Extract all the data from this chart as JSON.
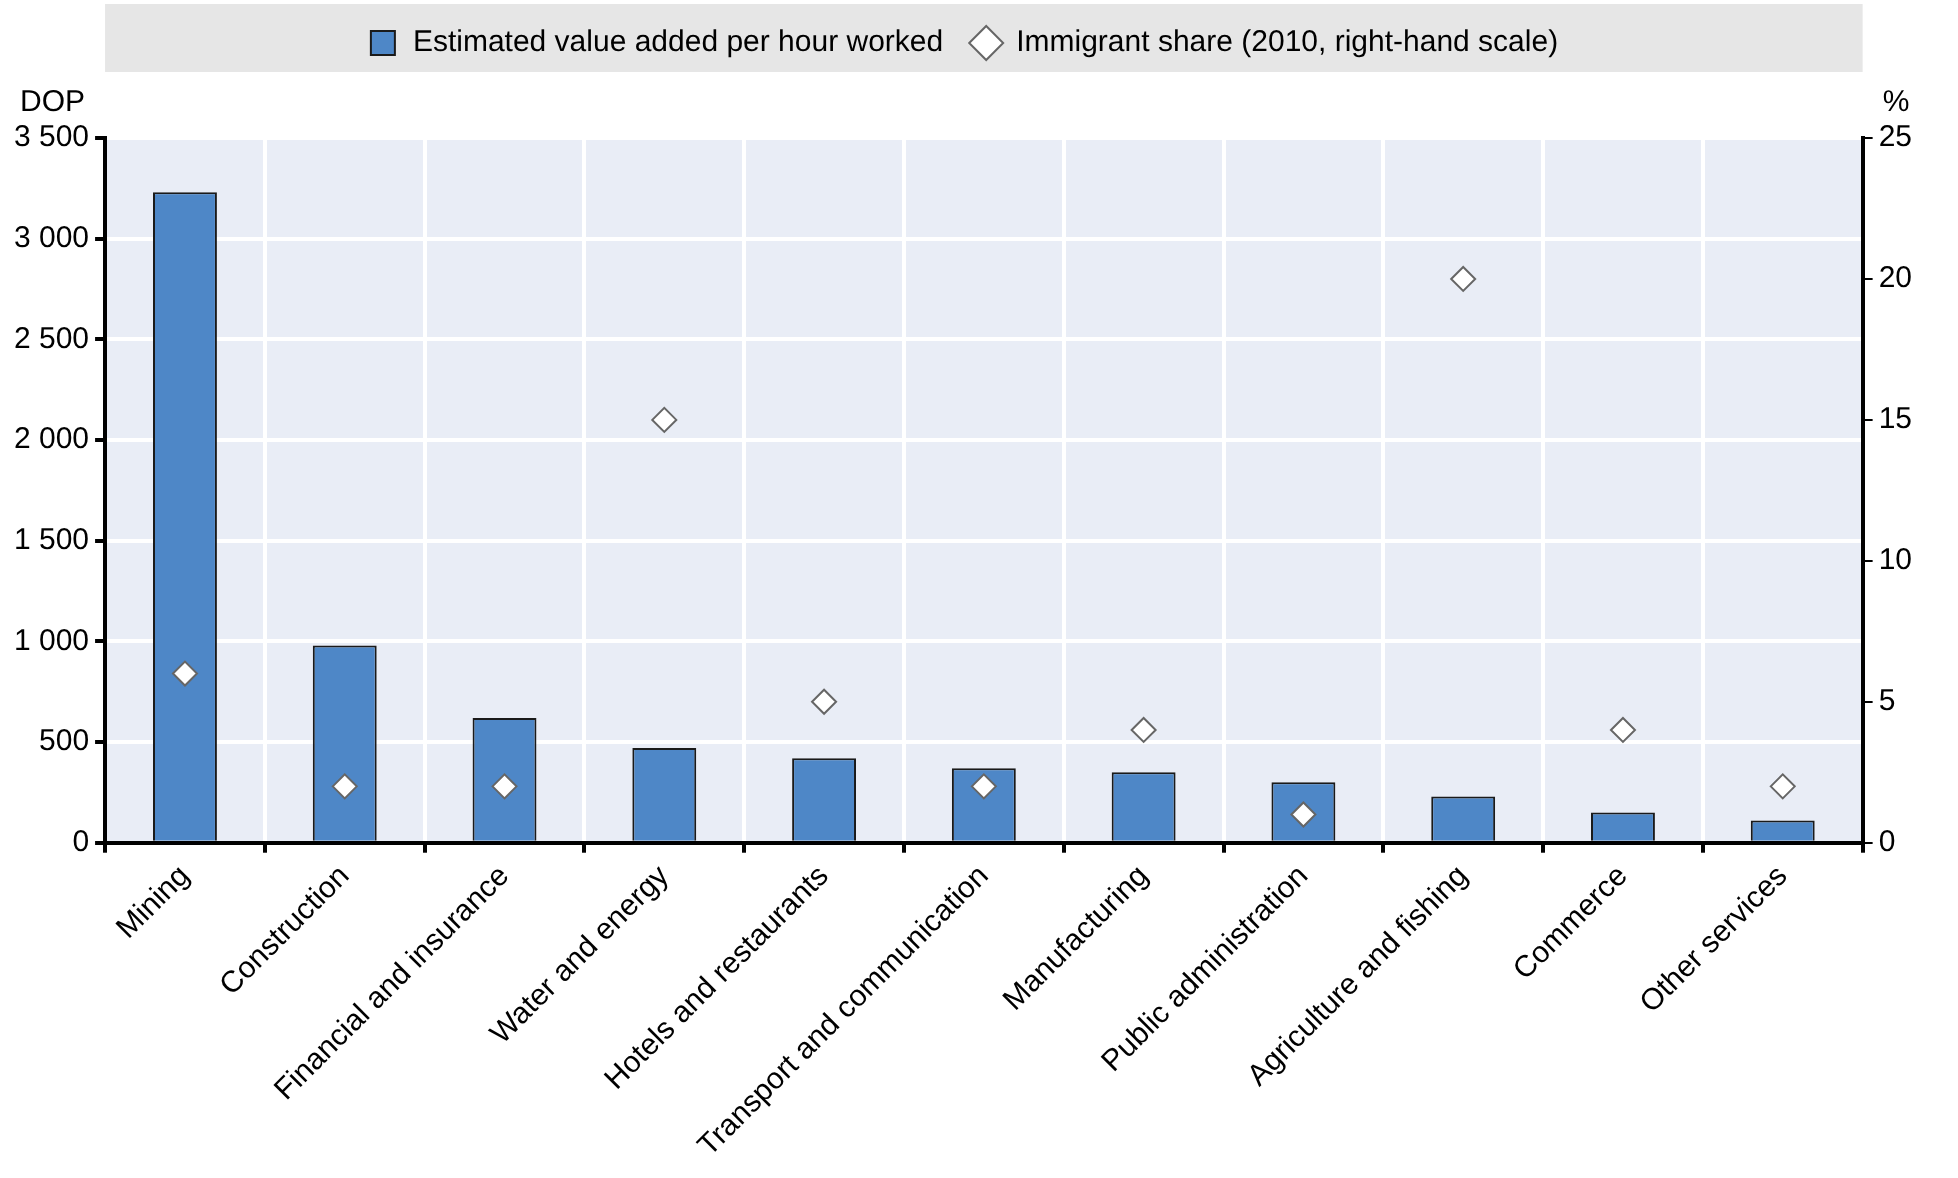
{
  "chart_data": {
    "type": "bar",
    "ylabel": "DOP",
    "y2label": "%",
    "categories": [
      "Mining",
      "Construction",
      "Financial and insurance",
      "Water and energy",
      "Hotels and restaurants",
      "Transport and communication",
      "Manufacturing",
      "Public administration",
      "Agriculture and fishing",
      "Commerce",
      "Other services"
    ],
    "series": [
      {
        "name": "Estimated value added per hour worked",
        "color": "#4e87c7",
        "values": [
          3230,
          980,
          620,
          470,
          420,
          370,
          350,
          300,
          230,
          150,
          110
        ]
      },
      {
        "name": "Immigrant share (2010, right-hand scale)",
        "type": "scatter",
        "axis": "y2",
        "marker": "diamond",
        "color": "#ffffff",
        "values": [
          6,
          2,
          2,
          15,
          5,
          2,
          4,
          1,
          20,
          4,
          2
        ]
      }
    ],
    "ylim": [
      0,
      3500
    ],
    "yticks": [
      0,
      500,
      {
        "value": 1000,
        "label": "1 000"
      },
      {
        "value": 1500,
        "label": "1 500"
      },
      {
        "value": 2000,
        "label": "2 000"
      },
      {
        "value": 2500,
        "label": "2 500"
      },
      {
        "value": 3000,
        "label": "3 000"
      },
      {
        "value": 3500,
        "label": "3 500"
      }
    ],
    "y2lim": [
      0,
      25
    ],
    "y2ticks": [
      0,
      5,
      10,
      15,
      20,
      25
    ],
    "grid": true,
    "legend": "top"
  }
}
